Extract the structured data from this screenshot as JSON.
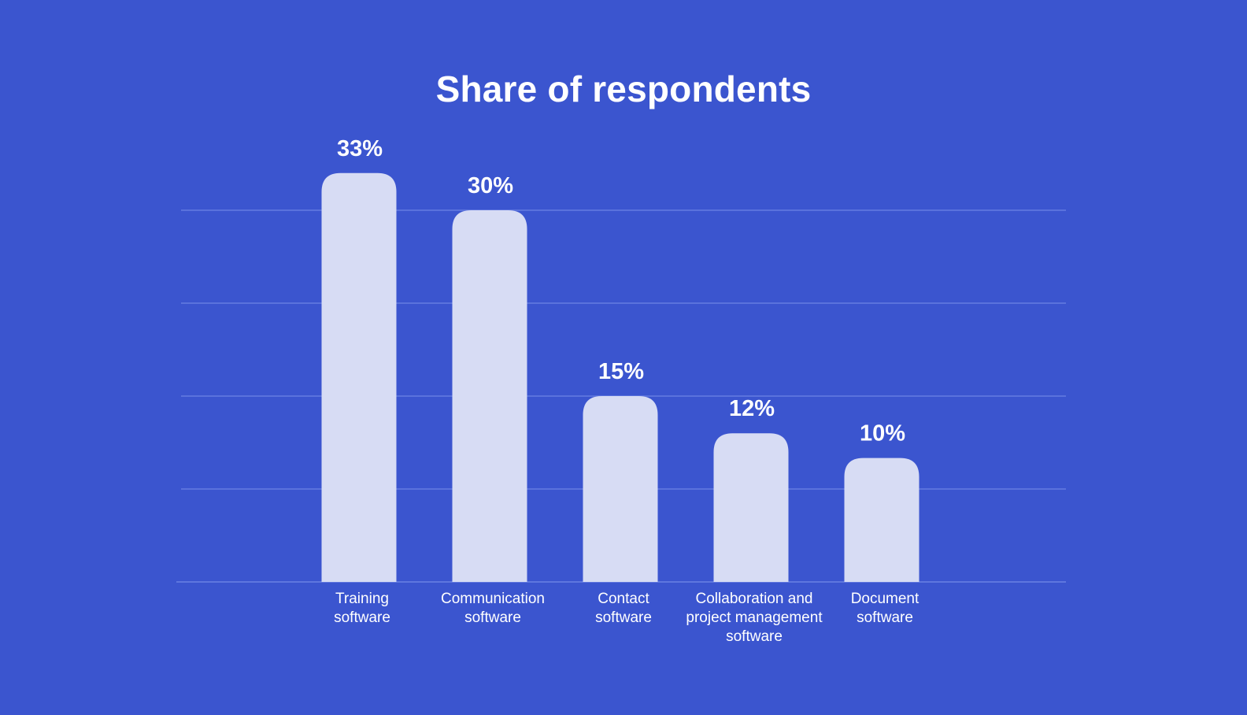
{
  "chart_data": {
    "type": "bar",
    "title": "Share of respondents",
    "categories": [
      [
        "Training",
        "software"
      ],
      [
        "Communication",
        "software"
      ],
      [
        "Contact",
        "software"
      ],
      [
        "Collaboration and",
        "project management",
        "software"
      ],
      [
        "Document",
        "software"
      ]
    ],
    "values": [
      33,
      30,
      15,
      12,
      10
    ],
    "value_labels": [
      "33%",
      "30%",
      "15%",
      "12%",
      "10%"
    ],
    "ylim": [
      0,
      30
    ],
    "grid": true,
    "legend": "none",
    "colors": {
      "background": "#3b55cf",
      "bar": "#d7dcf4",
      "grid": "#5a72dc",
      "text": "#ffffff"
    }
  }
}
